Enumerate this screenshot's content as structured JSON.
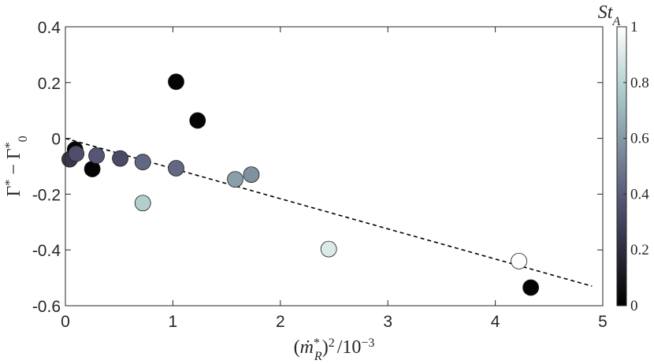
{
  "chart_data": {
    "type": "scatter",
    "title": "",
    "xlabel": "(ṁ*_R)² /10⁻³",
    "ylabel": "Γ* − Γ*₀",
    "xlim": [
      0,
      5
    ],
    "ylim": [
      -0.6,
      0.4
    ],
    "xticks": [
      "0",
      "1",
      "2",
      "3",
      "4",
      "5"
    ],
    "yticks": [
      "0.4",
      "0.2",
      "0",
      "-0.2",
      "-0.4",
      "-0.6"
    ],
    "grid": false,
    "colorbar": {
      "label": "St_A",
      "range": [
        0,
        1
      ],
      "ticks": [
        "0",
        "0.2",
        "0.4",
        "0.6",
        "0.8",
        "1"
      ],
      "colormap": "bone"
    },
    "points": [
      {
        "x": 0.04,
        "y": -0.075,
        "c": 0.25
      },
      {
        "x": 0.09,
        "y": -0.04,
        "c": 0.02
      },
      {
        "x": 0.1,
        "y": -0.055,
        "c": 0.35
      },
      {
        "x": 0.25,
        "y": -0.11,
        "c": 0.02
      },
      {
        "x": 0.29,
        "y": -0.062,
        "c": 0.38
      },
      {
        "x": 0.51,
        "y": -0.072,
        "c": 0.33
      },
      {
        "x": 0.72,
        "y": -0.085,
        "c": 0.44
      },
      {
        "x": 0.72,
        "y": -0.232,
        "c": 0.78
      },
      {
        "x": 1.03,
        "y": 0.203,
        "c": 0.02
      },
      {
        "x": 1.03,
        "y": -0.107,
        "c": 0.44
      },
      {
        "x": 1.23,
        "y": 0.064,
        "c": 0.02
      },
      {
        "x": 1.58,
        "y": -0.147,
        "c": 0.62
      },
      {
        "x": 1.73,
        "y": -0.13,
        "c": 0.57
      },
      {
        "x": 2.45,
        "y": -0.397,
        "c": 0.9
      },
      {
        "x": 4.22,
        "y": -0.44,
        "c": 1.0
      },
      {
        "x": 4.33,
        "y": -0.535,
        "c": 0.02
      }
    ],
    "fit_line": {
      "x": [
        0,
        4.9
      ],
      "y": [
        0,
        -0.53
      ],
      "style": "dashed"
    }
  }
}
